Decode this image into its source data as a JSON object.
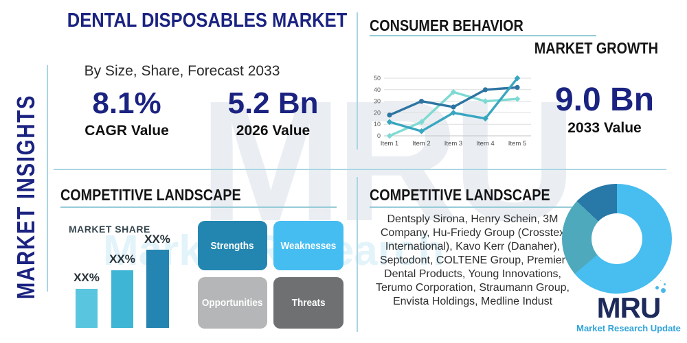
{
  "brand": {
    "watermark": "MRU",
    "watermark_sub": "Market Research",
    "logo_text": "MRU",
    "logo_subtext": "Market Research Update"
  },
  "sidebar": {
    "label": "MARKET INSIGHTS"
  },
  "header": {
    "title": "DENTAL DISPOSABLES MARKET",
    "subtitle": "By Size, Share, Forecast 2033"
  },
  "overview_stats": [
    {
      "value": "8.1%",
      "label": "CAGR Value"
    },
    {
      "value": "5.2 Bn",
      "label": "2026 Value"
    }
  ],
  "consumer_behavior": {
    "title": "CONSUMER BEHAVIOR",
    "subtitle": "MARKET GROWTH",
    "stat": {
      "value": "9.0 Bn",
      "label": "2033 Value"
    }
  },
  "competitive_left": {
    "title": "COMPETITIVE LANDSCAPE",
    "chart_label": "MARKET SHARE"
  },
  "swot": {
    "items": [
      {
        "label": "Strengths",
        "color": "#2286b0"
      },
      {
        "label": "Weaknesses",
        "color": "#45bdf1"
      },
      {
        "label": "Opportunities",
        "color": "#b4b6b7"
      },
      {
        "label": "Threats",
        "color": "#6e7071"
      }
    ]
  },
  "competitive_right": {
    "title": "COMPETITIVE LANDSCAPE",
    "companies": "Dentsply Sirona, Henry Schein, 3M Company, Hu-Friedy Group (Crosstex International), Kavo Kerr (Danaher), Septodont, COLTENE Group, Premier Dental Products, Young Innovations, Terumo Corporation, Straumann Group, Envista Holdings, Medline Indust"
  },
  "chart_data": [
    {
      "type": "line",
      "title": "CONSUMER BEHAVIOR",
      "x": [
        "Item 1",
        "Item 2",
        "Item 3",
        "Item 4",
        "Item 5"
      ],
      "ylim": [
        0,
        50
      ],
      "yticks": [
        0,
        10,
        20,
        30,
        40,
        50
      ],
      "grid": true,
      "legend_position": "none",
      "series": [
        {
          "name": "light-teal-series",
          "color": "#7edad2",
          "marker": "diamond",
          "values": [
            0,
            12,
            38,
            30,
            32
          ]
        },
        {
          "name": "dark-blue-series",
          "color": "#2d74a2",
          "marker": "circle",
          "values": [
            18,
            30,
            25,
            40,
            42
          ]
        },
        {
          "name": "teal-series",
          "color": "#38a6c0",
          "marker": "diamond",
          "values": [
            12,
            4,
            20,
            15,
            50
          ]
        }
      ]
    },
    {
      "type": "bar",
      "title": "MARKET SHARE",
      "categories": [
        "bar-1",
        "bar-2",
        "bar-3"
      ],
      "labels": [
        "XX%",
        "XX%",
        "XX%"
      ],
      "values": [
        25,
        37,
        50
      ],
      "ylim": [
        0,
        55
      ],
      "colors": [
        "#5ac5de",
        "#3eb5d5",
        "#2585b2"
      ]
    },
    {
      "type": "pie",
      "donut": true,
      "title": "",
      "slices": [
        {
          "name": "light-blue-slice",
          "value": 64,
          "color": "#47bdf0"
        },
        {
          "name": "teal-slice",
          "value": 23,
          "color": "#4fa9bd"
        },
        {
          "name": "dark-blue-slice",
          "value": 13,
          "color": "#2878a8"
        }
      ]
    }
  ]
}
